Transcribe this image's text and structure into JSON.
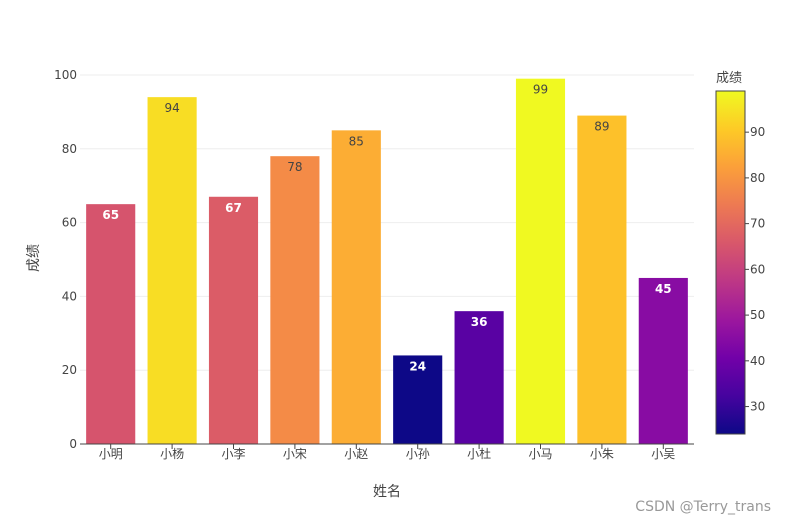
{
  "chart_data": {
    "type": "bar",
    "categories": [
      "小明",
      "小杨",
      "小李",
      "小宋",
      "小赵",
      "小孙",
      "小杜",
      "小马",
      "小朱",
      "小吴"
    ],
    "values": [
      65,
      94,
      67,
      78,
      85,
      24,
      36,
      99,
      89,
      45
    ],
    "xlabel": "姓名",
    "ylabel": "成绩",
    "ylim": [
      0,
      100
    ],
    "yticks": [
      0,
      20,
      40,
      60,
      80,
      100
    ],
    "grid": true,
    "colorscale": "plasma",
    "colorbar": {
      "title": "成绩",
      "range": [
        24,
        99
      ],
      "ticks": [
        30,
        40,
        50,
        60,
        70,
        80,
        90
      ],
      "placement": "right"
    }
  },
  "watermark": "CSDN @Terry_trans"
}
